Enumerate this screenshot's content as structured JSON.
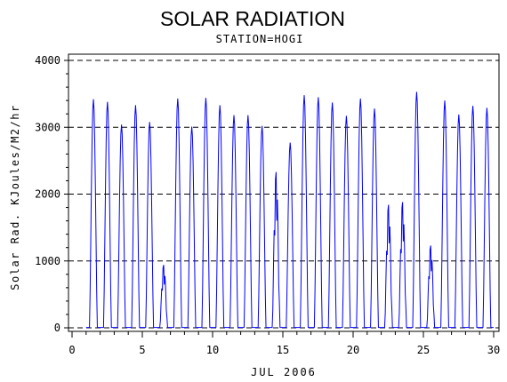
{
  "chart_data": {
    "type": "line",
    "title": "SOLAR RADIATION",
    "subtitle": "STATION=HOGI",
    "xlabel": "JUL 2006",
    "ylabel": "Solar Rad. KJoules/M2/hr",
    "xlim": [
      0,
      30
    ],
    "ylim": [
      0,
      4000
    ],
    "x_ticks": [
      0,
      5,
      10,
      15,
      20,
      25,
      30
    ],
    "y_ticks": [
      0,
      1000,
      2000,
      3000,
      4000
    ],
    "y_tick_labels": [
      "0",
      "1000",
      "2000",
      "3000",
      "4000"
    ],
    "gridlines": "horizontal dashed at y ticks",
    "series": [
      {
        "color": "#0000ff",
        "daily_peaks": [
          {
            "day": 1,
            "peak": 3420
          },
          {
            "day": 2,
            "peak": 3380
          },
          {
            "day": 3,
            "peak": 3040
          },
          {
            "day": 4,
            "peak": 3330
          },
          {
            "day": 5,
            "peak": 3080
          },
          {
            "day": 6,
            "peak": 940
          },
          {
            "day": 7,
            "peak": 3430
          },
          {
            "day": 8,
            "peak": 3010
          },
          {
            "day": 9,
            "peak": 3440
          },
          {
            "day": 10,
            "peak": 3330
          },
          {
            "day": 11,
            "peak": 3180
          },
          {
            "day": 12,
            "peak": 3180
          },
          {
            "day": 13,
            "peak": 3020
          },
          {
            "day": 14,
            "peak": 2330
          },
          {
            "day": 15,
            "peak": 2770
          },
          {
            "day": 16,
            "peak": 3480
          },
          {
            "day": 17,
            "peak": 3450
          },
          {
            "day": 18,
            "peak": 3370
          },
          {
            "day": 19,
            "peak": 3170
          },
          {
            "day": 20,
            "peak": 3430
          },
          {
            "day": 21,
            "peak": 3280
          },
          {
            "day": 22,
            "peak": 1840
          },
          {
            "day": 23,
            "peak": 1880
          },
          {
            "day": 24,
            "peak": 3530
          },
          {
            "day": 25,
            "peak": 1230
          },
          {
            "day": 26,
            "peak": 3400
          },
          {
            "day": 27,
            "peak": 3190
          },
          {
            "day": 28,
            "peak": 3320
          },
          {
            "day": 29,
            "peak": 3290
          }
        ]
      }
    ]
  }
}
